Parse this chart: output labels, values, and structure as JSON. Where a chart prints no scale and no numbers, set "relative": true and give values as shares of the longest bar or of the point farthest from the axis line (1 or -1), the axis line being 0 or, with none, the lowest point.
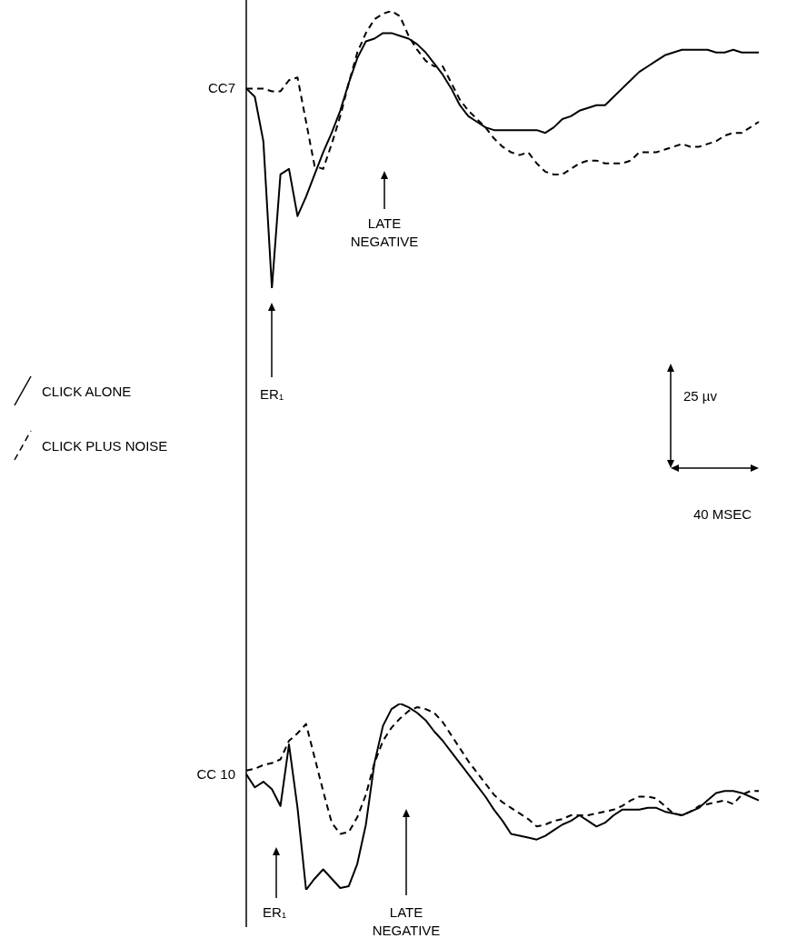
{
  "chart_data": [
    {
      "type": "line",
      "relative": true,
      "ylabel": "CC7",
      "legend": "left",
      "categories": [
        null,
        null,
        null,
        null,
        null,
        null,
        null,
        null,
        null,
        null,
        null,
        null,
        null,
        null,
        null,
        null,
        null,
        null,
        null,
        null,
        null,
        null,
        null,
        null,
        null,
        null,
        null,
        null,
        null,
        null,
        null,
        null,
        null,
        null,
        null,
        null,
        null,
        null,
        null,
        null,
        null,
        null,
        null,
        null,
        null,
        null,
        null,
        null,
        null,
        null,
        null,
        null,
        null,
        null,
        null,
        null,
        null,
        null,
        null,
        null,
        null
      ],
      "annotations": [
        "LATE NEGATIVE",
        "ER₁",
        "25 µv",
        "40 MSEC"
      ],
      "series": [
        {
          "name": "CLICK ALONE",
          "color": "#000000",
          "line_style": "solid",
          "values": [
            0.72,
            0.69,
            0.53,
            0,
            0.41,
            0.43,
            0.26,
            0.33,
            0.41,
            0.49,
            0.56,
            0.64,
            0.74,
            0.83,
            0.89,
            0.9,
            0.92,
            0.92,
            0.91,
            0.9,
            0.88,
            0.85,
            0.81,
            0.77,
            0.72,
            0.66,
            0.62,
            0.6,
            0.58,
            0.57,
            0.57,
            0.57,
            0.57,
            0.57,
            0.57,
            0.56,
            0.58,
            0.61,
            0.62,
            0.64,
            0.65,
            0.66,
            0.66,
            0.69,
            0.72,
            0.75,
            0.78,
            0.8,
            0.82,
            0.84,
            0.85,
            0.86,
            0.86,
            0.86,
            0.86,
            0.85,
            0.85,
            0.86,
            0.85,
            0.85,
            0.85
          ]
        },
        {
          "name": "CLICK PLUS NOISE",
          "color": "#000000",
          "line_style": "dashed",
          "values": [
            0.72,
            0.72,
            0.72,
            0.71,
            0.71,
            0.75,
            0.76,
            0.6,
            0.44,
            0.43,
            0.52,
            0.62,
            0.74,
            0.85,
            0.92,
            0.97,
            0.99,
            1,
            0.98,
            0.91,
            0.86,
            0.82,
            0.8,
            0.8,
            0.74,
            0.68,
            0.64,
            0.61,
            0.58,
            0.54,
            0.51,
            0.49,
            0.48,
            0.49,
            0.45,
            0.42,
            0.41,
            0.41,
            0.43,
            0.45,
            0.46,
            0.46,
            0.45,
            0.45,
            0.45,
            0.46,
            0.49,
            0.49,
            0.49,
            0.5,
            0.51,
            0.52,
            0.51,
            0.51,
            0.52,
            0.53,
            0.55,
            0.56,
            0.56,
            0.58,
            0.6
          ]
        }
      ]
    },
    {
      "type": "line",
      "relative": true,
      "ylabel": "CC 10",
      "categories": [
        null,
        null,
        null,
        null,
        null,
        null,
        null,
        null,
        null,
        null,
        null,
        null,
        null,
        null,
        null,
        null,
        null,
        null,
        null,
        null,
        null,
        null,
        null,
        null,
        null,
        null,
        null,
        null,
        null,
        null,
        null,
        null,
        null,
        null,
        null,
        null,
        null,
        null,
        null,
        null,
        null,
        null,
        null,
        null,
        null,
        null,
        null,
        null,
        null,
        null,
        null,
        null,
        null,
        null,
        null,
        null,
        null,
        null,
        null,
        null,
        null
      ],
      "annotations": [
        "LATE NEGATIVE",
        "ER₁"
      ],
      "series": [
        {
          "color": "#000000",
          "line_style": "solid",
          "values": [
            0.62,
            0.55,
            0.58,
            0.54,
            0.45,
            0.78,
            0.44,
            0,
            0.06,
            0.11,
            0.06,
            0.01,
            0.02,
            0.14,
            0.35,
            0.68,
            0.88,
            0.97,
            1,
            0.98,
            0.95,
            0.91,
            0.85,
            0.8,
            0.74,
            0.68,
            0.62,
            0.56,
            0.5,
            0.43,
            0.37,
            0.3,
            0.29,
            0.28,
            0.27,
            0.29,
            0.32,
            0.35,
            0.37,
            0.4,
            0.37,
            0.34,
            0.36,
            0.4,
            0.43,
            0.43,
            0.43,
            0.44,
            0.44,
            0.42,
            0.41,
            0.4,
            0.42,
            0.44,
            0.48,
            0.52,
            0.53,
            0.53,
            0.52,
            0.5,
            0.48
          ]
        },
        {
          "color": "#000000",
          "line_style": "dashed",
          "values": [
            0.64,
            0.65,
            0.67,
            0.68,
            0.7,
            0.8,
            0.84,
            0.89,
            0.71,
            0.53,
            0.36,
            0.3,
            0.31,
            0.39,
            0.51,
            0.68,
            0.8,
            0.87,
            0.92,
            0.96,
            0.98,
            0.97,
            0.95,
            0.9,
            0.83,
            0.76,
            0.69,
            0.63,
            0.57,
            0.51,
            0.47,
            0.44,
            0.41,
            0.38,
            0.34,
            0.35,
            0.37,
            0.38,
            0.4,
            0.4,
            0.4,
            0.41,
            0.42,
            0.43,
            0.45,
            0.48,
            0.5,
            0.5,
            0.49,
            0.45,
            0.41,
            0.4,
            0.42,
            0.45,
            0.46,
            0.47,
            0.48,
            0.46,
            0.51,
            0.53,
            0.53
          ]
        }
      ]
    }
  ]
}
